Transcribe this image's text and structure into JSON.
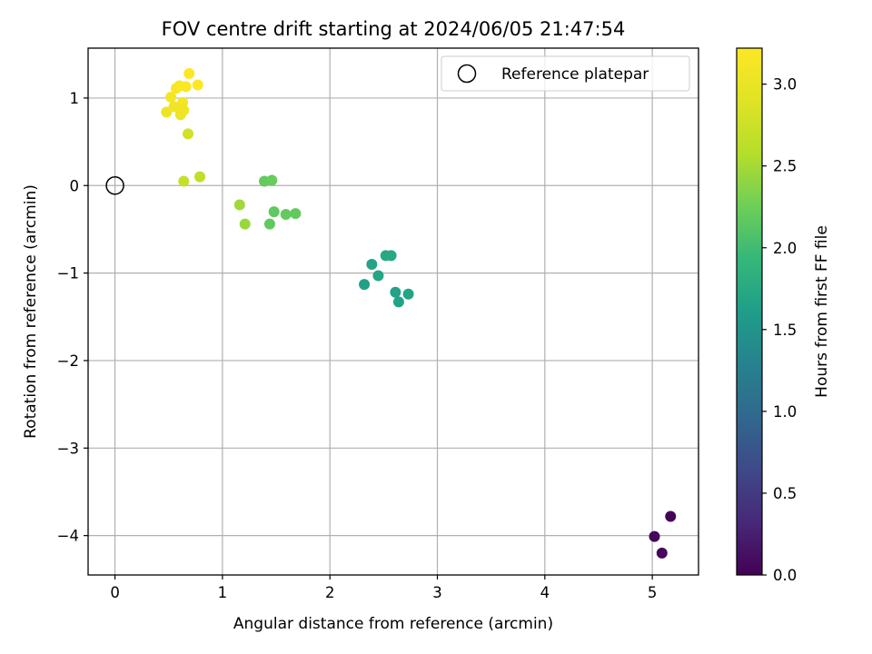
{
  "chart_data": {
    "type": "scatter",
    "title": "FOV centre drift starting at 2024/06/05 21:47:54",
    "xlabel": "Angular distance from reference (arcmin)",
    "ylabel": "Rotation from reference (arcmin)",
    "xlim": [
      -0.25,
      5.43
    ],
    "ylim": [
      -4.45,
      1.57
    ],
    "xticks": [
      0,
      1,
      2,
      3,
      4,
      5
    ],
    "xtick_labels": [
      "0",
      "1",
      "2",
      "3",
      "4",
      "5"
    ],
    "yticks": [
      1,
      0,
      -1,
      -2,
      -3,
      -4
    ],
    "ytick_labels": [
      "1",
      "0",
      "−1",
      "−2",
      "−3",
      "−4"
    ],
    "grid": true,
    "colormap": "viridis",
    "colorbar": {
      "label": "Hours from first FF file",
      "range": [
        0,
        3.22
      ],
      "ticks": [
        0.0,
        0.5,
        1.0,
        1.5,
        2.0,
        2.5,
        3.0
      ],
      "tick_labels": [
        "0.0",
        "0.5",
        "1.0",
        "1.5",
        "2.0",
        "2.5",
        "3.0"
      ]
    },
    "reference": {
      "name": "Reference platepar",
      "x": 0,
      "y": 0,
      "marker": "open-circle",
      "legend_position": "upper right"
    },
    "series": [
      {
        "points": [
          {
            "x": 5.17,
            "y": -3.78,
            "t": 0.02
          },
          {
            "x": 5.02,
            "y": -4.01,
            "t": 0.04
          },
          {
            "x": 5.09,
            "y": -4.2,
            "t": 0.06
          },
          {
            "x": 2.32,
            "y": -1.13,
            "t": 1.65
          },
          {
            "x": 2.39,
            "y": -0.9,
            "t": 1.68
          },
          {
            "x": 2.45,
            "y": -1.03,
            "t": 1.7
          },
          {
            "x": 2.52,
            "y": -0.8,
            "t": 1.72
          },
          {
            "x": 2.57,
            "y": -0.8,
            "t": 1.74
          },
          {
            "x": 2.61,
            "y": -1.22,
            "t": 1.66
          },
          {
            "x": 2.64,
            "y": -1.33,
            "t": 1.67
          },
          {
            "x": 2.73,
            "y": -1.24,
            "t": 1.69
          },
          {
            "x": 1.16,
            "y": -0.22,
            "t": 2.48
          },
          {
            "x": 1.21,
            "y": -0.44,
            "t": 2.45
          },
          {
            "x": 1.39,
            "y": 0.05,
            "t": 2.2
          },
          {
            "x": 1.46,
            "y": 0.06,
            "t": 2.22
          },
          {
            "x": 1.44,
            "y": -0.44,
            "t": 2.18
          },
          {
            "x": 1.48,
            "y": -0.3,
            "t": 2.17
          },
          {
            "x": 1.59,
            "y": -0.33,
            "t": 2.2
          },
          {
            "x": 1.68,
            "y": -0.32,
            "t": 2.19
          },
          {
            "x": 0.64,
            "y": 0.05,
            "t": 2.7
          },
          {
            "x": 0.79,
            "y": 0.1,
            "t": 2.66
          },
          {
            "x": 0.68,
            "y": 0.59,
            "t": 2.78
          },
          {
            "x": 0.48,
            "y": 0.84,
            "t": 3.02
          },
          {
            "x": 0.52,
            "y": 1.01,
            "t": 3.12
          },
          {
            "x": 0.55,
            "y": 0.9,
            "t": 3.06
          },
          {
            "x": 0.57,
            "y": 1.11,
            "t": 3.16
          },
          {
            "x": 0.6,
            "y": 1.14,
            "t": 3.18
          },
          {
            "x": 0.61,
            "y": 0.81,
            "t": 3.04
          },
          {
            "x": 0.63,
            "y": 0.95,
            "t": 3.1
          },
          {
            "x": 0.64,
            "y": 0.86,
            "t": 3.08
          },
          {
            "x": 0.66,
            "y": 1.13,
            "t": 3.2
          },
          {
            "x": 0.69,
            "y": 1.28,
            "t": 3.22
          },
          {
            "x": 0.77,
            "y": 1.15,
            "t": 3.21
          }
        ]
      }
    ]
  }
}
